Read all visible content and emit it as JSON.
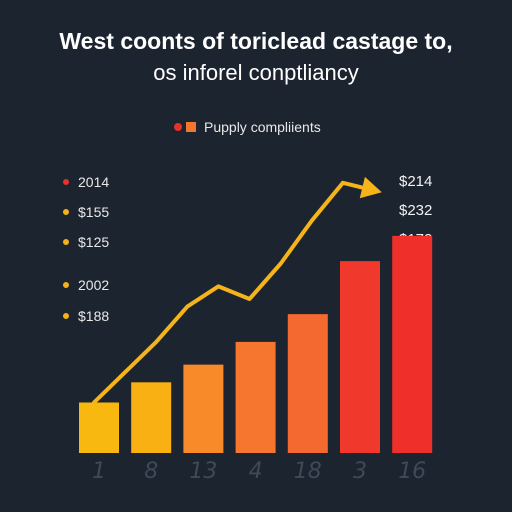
{
  "title_line1": "West coonts of toriclead castage to,",
  "title_line2": "os inforel conptliancy",
  "legend": {
    "label": "Pupply compliients"
  },
  "side_labels": [
    {
      "text": "2014",
      "color": "#e4322c"
    },
    {
      "text": "$155",
      "color": "#f5b11a"
    },
    {
      "text": "$125",
      "color": "#f5b11a"
    },
    {
      "text": "2002",
      "color": "#f5b11a"
    },
    {
      "text": "$188",
      "color": "#f5b11a"
    }
  ],
  "right_labels": [
    "$214",
    "$232",
    "$172"
  ],
  "chart_data": {
    "type": "bar",
    "categories": [
      "1",
      "8",
      "13",
      "4",
      "18",
      "3",
      "16"
    ],
    "bar_values": [
      1,
      1.4,
      1.75,
      2.2,
      2.75,
      3.8,
      4.3
    ],
    "bar_colors": [
      "#f9b80f",
      "#f9b013",
      "#f98a2a",
      "#f6762f",
      "#f4692f",
      "#f0392c",
      "#ef2f29"
    ],
    "trend": {
      "color": "#f5b51a",
      "values": [
        1.0,
        1.6,
        2.2,
        2.9,
        3.3,
        3.05,
        3.75,
        4.6,
        5.35,
        5.2
      ]
    },
    "y_range": [
      0,
      6
    ],
    "grid": false,
    "legend_position": "top-center"
  }
}
